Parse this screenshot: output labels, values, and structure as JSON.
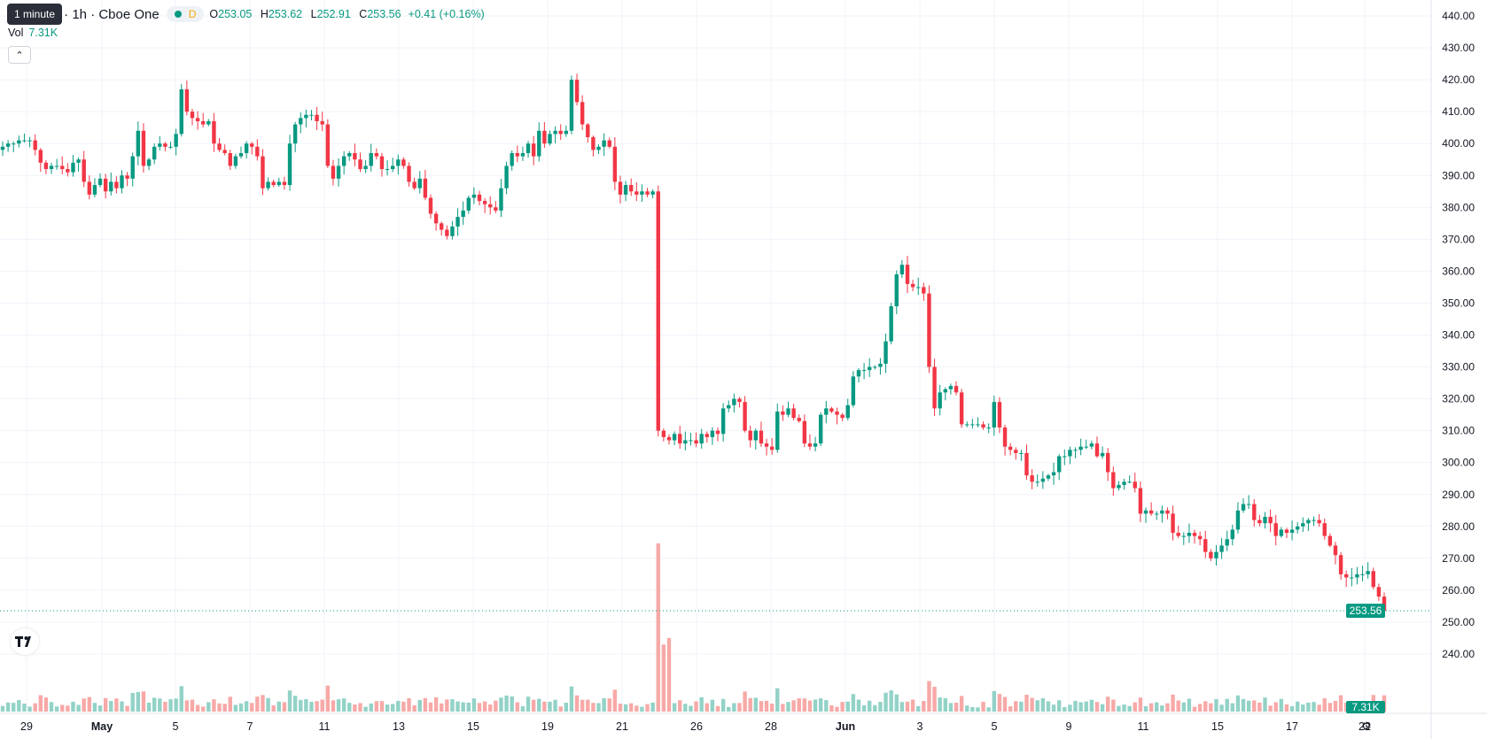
{
  "header": {
    "tooltip": "1 minute",
    "symbol_title": "nc. · 1h · Cboe One",
    "interval_badge": "D",
    "open_key": "O",
    "open_val": "253.05",
    "high_key": "H",
    "high_val": "253.62",
    "low_key": "L",
    "low_val": "252.91",
    "close_key": "C",
    "close_val": "253.56",
    "change": "+0.41 (+0.16%)",
    "vol_key": "Vol",
    "vol_val": "7.31K"
  },
  "icons": {
    "collapse": "chevron-up-icon",
    "logo": "tradingview-logo",
    "settings": "gear-icon"
  },
  "colors": {
    "up": "#089981",
    "down": "#f23645",
    "vol_up": "#92d2c7",
    "vol_down": "#f7a9a7",
    "grid": "#f0f3fa"
  },
  "chart_data": {
    "type": "candlestick",
    "ylim": [
      240,
      445
    ],
    "y_ticks": [
      "440.00",
      "430.00",
      "420.00",
      "410.00",
      "400.00",
      "390.00",
      "380.00",
      "370.00",
      "360.00",
      "350.00",
      "340.00",
      "330.00",
      "320.00",
      "310.00",
      "300.00",
      "290.00",
      "280.00",
      "270.00",
      "260.00",
      "250.00",
      "240.00"
    ],
    "x_ticks": [
      "29",
      "May",
      "5",
      "7",
      "11",
      "13",
      "15",
      "19",
      "21",
      "26",
      "28",
      "Jun",
      "3",
      "5",
      "9",
      "11",
      "15",
      "17",
      "22"
    ],
    "bold_x_ticks": [
      "May",
      "Jun"
    ],
    "last_price": "253.56",
    "last_volume": "7.31K",
    "close_path": [
      [
        0,
        399
      ],
      [
        1,
        400
      ],
      [
        2,
        400
      ],
      [
        3,
        401
      ],
      [
        4,
        401
      ],
      [
        5,
        401
      ],
      [
        6,
        398
      ],
      [
        7,
        394
      ],
      [
        8,
        392
      ],
      [
        9,
        393
      ],
      [
        10,
        393
      ],
      [
        11,
        392
      ],
      [
        12,
        391
      ],
      [
        13,
        394
      ],
      [
        14,
        395
      ],
      [
        15,
        388
      ],
      [
        16,
        384
      ],
      [
        17,
        387
      ],
      [
        18,
        389
      ],
      [
        19,
        385
      ],
      [
        20,
        388
      ],
      [
        21,
        386
      ],
      [
        22,
        390
      ],
      [
        23,
        389
      ],
      [
        24,
        396
      ],
      [
        25,
        404
      ],
      [
        26,
        393
      ],
      [
        27,
        395
      ],
      [
        28,
        399
      ],
      [
        29,
        400
      ],
      [
        30,
        399
      ],
      [
        31,
        399
      ],
      [
        32,
        403
      ],
      [
        33,
        417
      ],
      [
        34,
        410
      ],
      [
        35,
        408
      ],
      [
        36,
        407
      ],
      [
        37,
        406
      ],
      [
        38,
        407
      ],
      [
        39,
        400
      ],
      [
        40,
        398
      ],
      [
        41,
        397
      ],
      [
        42,
        393
      ],
      [
        43,
        396
      ],
      [
        44,
        397
      ],
      [
        45,
        400
      ],
      [
        46,
        399
      ],
      [
        47,
        396
      ],
      [
        48,
        386
      ],
      [
        49,
        388
      ],
      [
        50,
        387
      ],
      [
        51,
        388
      ],
      [
        52,
        387
      ],
      [
        53,
        400
      ],
      [
        54,
        406
      ],
      [
        55,
        408
      ],
      [
        56,
        409
      ],
      [
        57,
        409
      ],
      [
        58,
        407
      ],
      [
        59,
        406
      ],
      [
        60,
        393
      ],
      [
        61,
        389
      ],
      [
        62,
        393
      ],
      [
        63,
        396
      ],
      [
        64,
        397
      ],
      [
        65,
        395
      ],
      [
        66,
        392
      ],
      [
        67,
        393
      ],
      [
        68,
        397
      ],
      [
        69,
        396
      ],
      [
        70,
        392
      ],
      [
        71,
        392
      ],
      [
        72,
        393
      ],
      [
        73,
        395
      ],
      [
        74,
        393
      ],
      [
        75,
        388
      ],
      [
        76,
        386
      ],
      [
        77,
        389
      ],
      [
        78,
        383
      ],
      [
        79,
        378
      ],
      [
        80,
        375
      ],
      [
        81,
        373
      ],
      [
        82,
        371
      ],
      [
        83,
        374
      ],
      [
        84,
        377
      ],
      [
        85,
        379
      ],
      [
        86,
        383
      ],
      [
        87,
        384
      ],
      [
        88,
        382
      ],
      [
        89,
        381
      ],
      [
        90,
        380
      ],
      [
        91,
        379
      ],
      [
        92,
        386
      ],
      [
        93,
        393
      ],
      [
        94,
        397
      ],
      [
        95,
        396
      ],
      [
        96,
        397
      ],
      [
        97,
        400
      ],
      [
        98,
        396
      ],
      [
        99,
        404
      ],
      [
        100,
        400
      ],
      [
        101,
        403
      ],
      [
        102,
        404
      ],
      [
        103,
        403
      ],
      [
        104,
        404
      ],
      [
        105,
        420
      ],
      [
        106,
        413
      ],
      [
        107,
        406
      ],
      [
        108,
        402
      ],
      [
        109,
        398
      ],
      [
        110,
        399
      ],
      [
        111,
        401
      ],
      [
        112,
        399
      ],
      [
        113,
        388
      ],
      [
        114,
        384
      ],
      [
        115,
        387
      ],
      [
        116,
        385
      ],
      [
        117,
        384
      ],
      [
        118,
        385
      ],
      [
        119,
        384
      ],
      [
        120,
        385
      ],
      [
        121,
        310
      ],
      [
        122,
        308
      ],
      [
        123,
        307
      ],
      [
        124,
        309
      ],
      [
        125,
        306
      ],
      [
        126,
        307
      ],
      [
        127,
        307
      ],
      [
        128,
        306
      ],
      [
        129,
        309
      ],
      [
        130,
        308
      ],
      [
        131,
        310
      ],
      [
        132,
        309
      ],
      [
        133,
        317
      ],
      [
        134,
        318
      ],
      [
        135,
        320
      ],
      [
        136,
        319
      ],
      [
        137,
        310
      ],
      [
        138,
        307
      ],
      [
        139,
        310
      ],
      [
        140,
        306
      ],
      [
        141,
        305
      ],
      [
        142,
        304
      ],
      [
        143,
        316
      ],
      [
        144,
        315
      ],
      [
        145,
        317
      ],
      [
        146,
        314
      ],
      [
        147,
        313
      ],
      [
        148,
        306
      ],
      [
        149,
        305
      ],
      [
        150,
        306
      ],
      [
        151,
        315
      ],
      [
        152,
        317
      ],
      [
        153,
        316
      ],
      [
        154,
        315
      ],
      [
        155,
        314
      ],
      [
        156,
        318
      ],
      [
        157,
        327
      ],
      [
        158,
        329
      ],
      [
        159,
        329
      ],
      [
        160,
        330
      ],
      [
        161,
        330
      ],
      [
        162,
        331
      ],
      [
        163,
        338
      ],
      [
        164,
        349
      ],
      [
        165,
        359
      ],
      [
        166,
        362
      ],
      [
        167,
        356
      ],
      [
        168,
        355
      ],
      [
        169,
        355
      ],
      [
        170,
        353
      ],
      [
        171,
        330
      ],
      [
        172,
        317
      ],
      [
        173,
        322
      ],
      [
        174,
        323
      ],
      [
        175,
        324
      ],
      [
        176,
        322
      ],
      [
        177,
        312
      ],
      [
        178,
        312
      ],
      [
        179,
        312
      ],
      [
        180,
        312
      ],
      [
        181,
        311
      ],
      [
        182,
        311
      ],
      [
        183,
        319
      ],
      [
        184,
        311
      ],
      [
        185,
        305
      ],
      [
        186,
        304
      ],
      [
        187,
        303
      ],
      [
        188,
        303
      ],
      [
        189,
        296
      ],
      [
        190,
        294
      ],
      [
        191,
        294
      ],
      [
        192,
        295
      ],
      [
        193,
        296
      ],
      [
        194,
        297
      ],
      [
        195,
        302
      ],
      [
        196,
        302
      ],
      [
        197,
        304
      ],
      [
        198,
        304
      ],
      [
        199,
        305
      ],
      [
        200,
        305
      ],
      [
        201,
        306
      ],
      [
        202,
        302
      ],
      [
        203,
        303
      ],
      [
        204,
        297
      ],
      [
        205,
        292
      ],
      [
        206,
        293
      ],
      [
        207,
        294
      ],
      [
        208,
        294
      ],
      [
        209,
        292
      ],
      [
        210,
        284
      ],
      [
        211,
        285
      ],
      [
        212,
        284
      ],
      [
        213,
        284
      ],
      [
        214,
        285
      ],
      [
        215,
        284
      ],
      [
        216,
        278
      ],
      [
        217,
        277
      ],
      [
        218,
        277
      ],
      [
        219,
        278
      ],
      [
        220,
        277
      ],
      [
        221,
        276
      ],
      [
        222,
        272
      ],
      [
        223,
        270
      ],
      [
        224,
        272
      ],
      [
        225,
        274
      ],
      [
        226,
        276
      ],
      [
        227,
        279
      ],
      [
        228,
        285
      ],
      [
        229,
        287
      ],
      [
        230,
        287
      ],
      [
        231,
        282
      ],
      [
        232,
        281
      ],
      [
        233,
        283
      ],
      [
        234,
        281
      ],
      [
        235,
        277
      ],
      [
        236,
        279
      ],
      [
        237,
        278
      ],
      [
        238,
        279
      ],
      [
        239,
        280
      ],
      [
        240,
        281
      ],
      [
        241,
        282
      ],
      [
        242,
        282
      ],
      [
        243,
        281
      ],
      [
        244,
        277
      ],
      [
        245,
        274
      ],
      [
        246,
        271
      ],
      [
        247,
        265
      ],
      [
        248,
        264
      ],
      [
        249,
        264
      ],
      [
        250,
        265
      ],
      [
        251,
        265
      ],
      [
        252,
        266
      ],
      [
        253,
        261
      ],
      [
        254,
        258
      ],
      [
        255,
        253.56
      ]
    ]
  }
}
